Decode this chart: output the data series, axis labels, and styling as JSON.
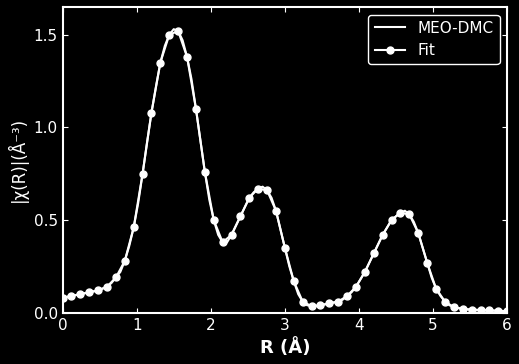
{
  "background_color": "#000000",
  "axes_color": "#ffffff",
  "text_color": "#ffffff",
  "line_color": "#ffffff",
  "xlabel": "R (Å)",
  "ylabel": "|χ(R)|(Å⁻³)",
  "xlim": [
    0,
    6
  ],
  "ylim": [
    0.0,
    1.65
  ],
  "xticks": [
    0,
    1,
    2,
    3,
    4,
    5,
    6
  ],
  "yticks": [
    0.0,
    0.5,
    1.0,
    1.5
  ],
  "legend_labels": [
    "MEO-DMC",
    "Fit"
  ],
  "xlabel_fontsize": 13,
  "ylabel_fontsize": 12,
  "legend_fontsize": 11,
  "tick_fontsize": 11,
  "line_width": 1.5,
  "marker_size": 5,
  "meo_dmc_x": [
    0.0,
    0.06,
    0.12,
    0.18,
    0.24,
    0.3,
    0.36,
    0.42,
    0.48,
    0.54,
    0.6,
    0.66,
    0.72,
    0.78,
    0.84,
    0.9,
    0.96,
    1.02,
    1.08,
    1.14,
    1.2,
    1.26,
    1.32,
    1.38,
    1.44,
    1.5,
    1.56,
    1.62,
    1.68,
    1.74,
    1.8,
    1.86,
    1.92,
    1.98,
    2.04,
    2.1,
    2.16,
    2.22,
    2.28,
    2.34,
    2.4,
    2.46,
    2.52,
    2.58,
    2.64,
    2.7,
    2.76,
    2.82,
    2.88,
    2.94,
    3.0,
    3.06,
    3.12,
    3.18,
    3.24,
    3.3,
    3.36,
    3.42,
    3.48,
    3.54,
    3.6,
    3.66,
    3.72,
    3.78,
    3.84,
    3.9,
    3.96,
    4.02,
    4.08,
    4.14,
    4.2,
    4.26,
    4.32,
    4.38,
    4.44,
    4.5,
    4.56,
    4.62,
    4.68,
    4.74,
    4.8,
    4.86,
    4.92,
    4.98,
    5.04,
    5.1,
    5.16,
    5.22,
    5.28,
    5.34,
    5.4,
    5.46,
    5.52,
    5.58,
    5.64,
    5.7,
    5.76,
    5.82,
    5.88,
    5.94,
    6.0
  ],
  "meo_dmc_y": [
    0.08,
    0.085,
    0.09,
    0.095,
    0.1,
    0.105,
    0.11,
    0.115,
    0.12,
    0.13,
    0.14,
    0.16,
    0.19,
    0.22,
    0.28,
    0.36,
    0.46,
    0.59,
    0.75,
    0.92,
    1.08,
    1.22,
    1.35,
    1.44,
    1.5,
    1.53,
    1.52,
    1.47,
    1.38,
    1.26,
    1.1,
    0.93,
    0.76,
    0.61,
    0.5,
    0.42,
    0.38,
    0.38,
    0.42,
    0.47,
    0.52,
    0.57,
    0.62,
    0.65,
    0.67,
    0.68,
    0.66,
    0.62,
    0.55,
    0.45,
    0.35,
    0.25,
    0.17,
    0.1,
    0.06,
    0.04,
    0.035,
    0.035,
    0.04,
    0.045,
    0.05,
    0.055,
    0.06,
    0.07,
    0.09,
    0.11,
    0.14,
    0.18,
    0.22,
    0.27,
    0.32,
    0.37,
    0.42,
    0.46,
    0.5,
    0.52,
    0.54,
    0.55,
    0.53,
    0.49,
    0.43,
    0.35,
    0.27,
    0.19,
    0.13,
    0.09,
    0.06,
    0.04,
    0.03,
    0.025,
    0.02,
    0.018,
    0.016,
    0.015,
    0.014,
    0.013,
    0.012,
    0.011,
    0.01,
    0.009,
    0.008
  ],
  "fit_x": [
    0.0,
    0.12,
    0.24,
    0.36,
    0.48,
    0.6,
    0.72,
    0.84,
    0.96,
    1.08,
    1.2,
    1.32,
    1.44,
    1.56,
    1.68,
    1.8,
    1.92,
    2.04,
    2.16,
    2.28,
    2.4,
    2.52,
    2.64,
    2.76,
    2.88,
    3.0,
    3.12,
    3.24,
    3.36,
    3.48,
    3.6,
    3.72,
    3.84,
    3.96,
    4.08,
    4.2,
    4.32,
    4.44,
    4.56,
    4.68,
    4.8,
    4.92,
    5.04,
    5.16,
    5.28,
    5.4,
    5.52,
    5.64,
    5.76,
    5.88,
    6.0
  ],
  "fit_y": [
    0.08,
    0.09,
    0.1,
    0.11,
    0.12,
    0.14,
    0.19,
    0.28,
    0.46,
    0.75,
    1.08,
    1.35,
    1.5,
    1.52,
    1.38,
    1.1,
    0.76,
    0.5,
    0.38,
    0.42,
    0.52,
    0.62,
    0.67,
    0.66,
    0.55,
    0.35,
    0.17,
    0.06,
    0.035,
    0.04,
    0.05,
    0.06,
    0.09,
    0.14,
    0.22,
    0.32,
    0.42,
    0.5,
    0.54,
    0.53,
    0.43,
    0.27,
    0.13,
    0.06,
    0.03,
    0.02,
    0.016,
    0.014,
    0.012,
    0.01,
    0.008
  ]
}
